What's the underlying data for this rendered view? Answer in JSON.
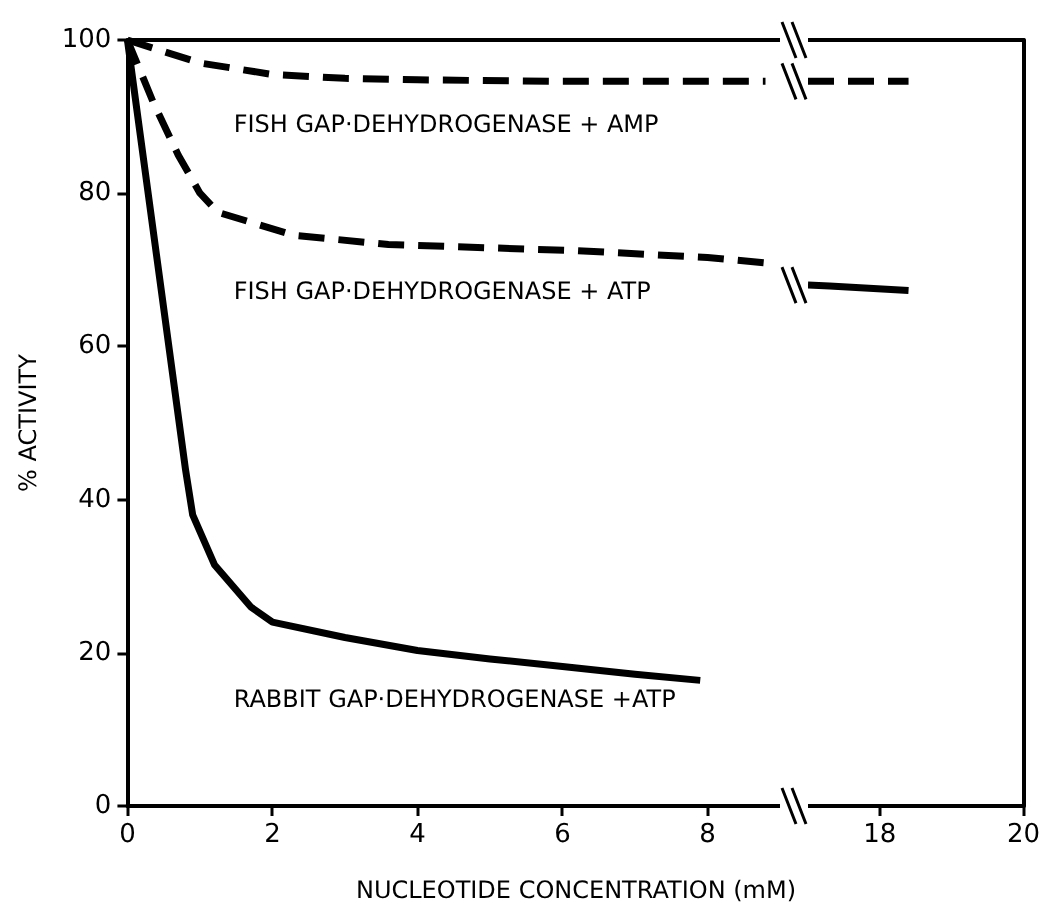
{
  "chart_data": [
    {
      "type": "line",
      "xlabel": "NUCLEOTIDE CONCENTRATION (mM)",
      "ylabel": "% ACTIVITY",
      "xlim": [
        0,
        9
      ],
      "xticks": [
        0,
        2,
        4,
        6,
        8
      ],
      "ylim": [
        0,
        100
      ],
      "yticks": [
        0,
        20,
        40,
        60,
        80,
        100
      ],
      "grid": false,
      "legend": false,
      "marker": "none",
      "series": [
        {
          "name": "FISH GAP·DEHYDROGENASE + AMP",
          "color": "#000000",
          "line_style": "dashed",
          "x": [
            0,
            1,
            2,
            3,
            4,
            6,
            8,
            8.8
          ],
          "values": [
            100,
            97,
            95.5,
            95,
            94.8,
            94.6,
            94.6,
            94.6
          ]
        },
        {
          "name": "FISH GAP·DEHYDROGENASE + ATP",
          "color": "#000000",
          "line_style": "dashed",
          "x": [
            0,
            0.35,
            0.7,
            1,
            1.25,
            2.3,
            3.6,
            6.2,
            8,
            8.8
          ],
          "values": [
            100,
            92,
            85,
            80,
            77.5,
            74.5,
            73.3,
            72.5,
            71.6,
            70.9
          ]
        },
        {
          "name": "RABBIT GAP·DEHYDROGENASE +ATP",
          "color": "#000000",
          "line_style": "solid",
          "x": [
            0,
            0.8,
            0.9,
            1.2,
            1.7,
            2,
            3,
            4,
            5,
            6,
            7,
            7.9
          ],
          "values": [
            100,
            44,
            38,
            31.5,
            26,
            24,
            22,
            20.3,
            19.2,
            18.2,
            17.2,
            16.4
          ]
        }
      ]
    },
    {
      "type": "line",
      "xlim": [
        17,
        20
      ],
      "xticks": [
        18,
        20
      ],
      "ylim": [
        0,
        100
      ],
      "tick_labels": "x",
      "grid": false,
      "legend": false,
      "marker": "none",
      "series": [
        {
          "color": "#000000",
          "line_style": "dashed",
          "x": [
            17,
            18.4
          ],
          "values": [
            94.6,
            94.6
          ]
        },
        {
          "color": "#000000",
          "line_style": "solid",
          "x": [
            17,
            17.3,
            18.4
          ],
          "values": [
            68,
            67.9,
            67.3
          ]
        }
      ]
    }
  ]
}
